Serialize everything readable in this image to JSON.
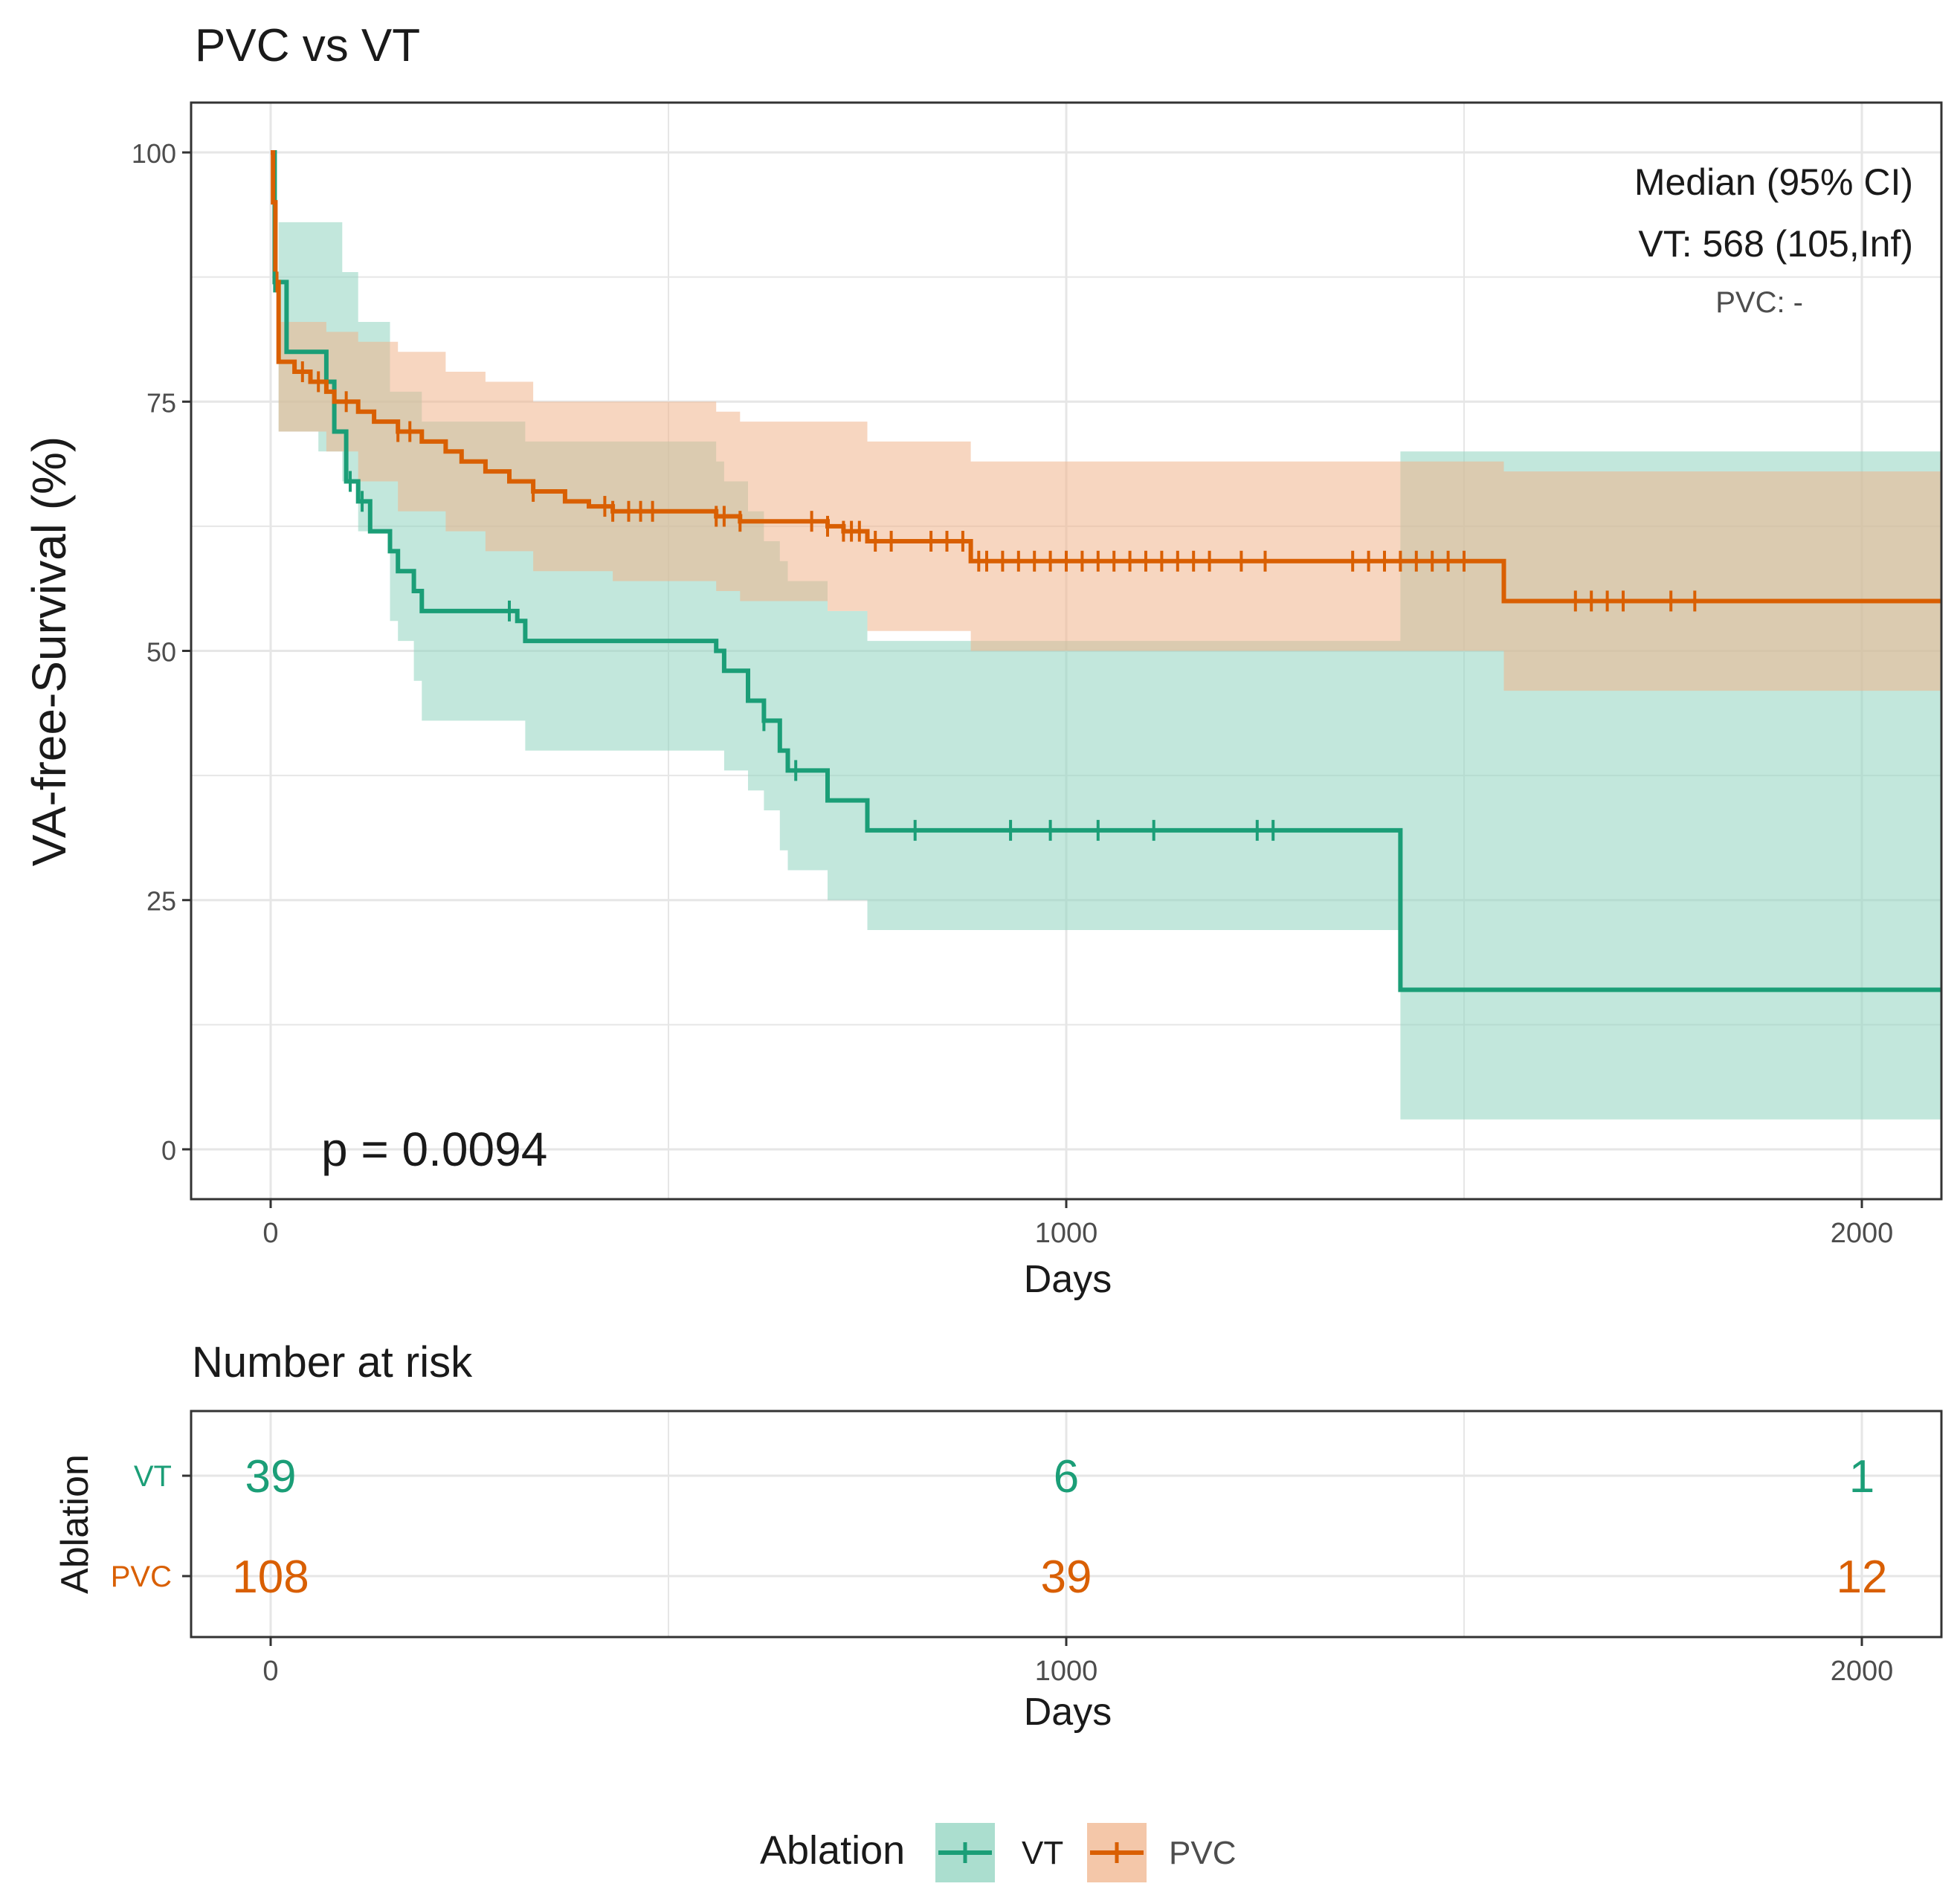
{
  "colors": {
    "vt": "#1b9e77",
    "pvc": "#d95f02",
    "vt_band": "#8fd3bf",
    "pvc_band": "#f0b48c",
    "grid": "#e6e6e6",
    "text": "#1a1a1a",
    "tick": "#4d4d4d"
  },
  "chart_data": [
    {
      "type": "line",
      "subtype": "kaplan-meier",
      "title": "PVC vs VT",
      "xlabel": "Days",
      "ylabel": "VA-free-Survival (%)",
      "xlim": [
        -100,
        2100
      ],
      "ylim": [
        -5,
        105
      ],
      "x_ticks": [
        0,
        1000,
        2000
      ],
      "x_tick_labels": [
        "0",
        "1000",
        "2000"
      ],
      "y_ticks": [
        0,
        25,
        50,
        75,
        100
      ],
      "y_tick_labels": [
        "0",
        "25",
        "50",
        "75",
        "100"
      ],
      "grid": true,
      "annotations": {
        "median_header": "Median (95% CI)",
        "median_vt": "VT: 568 (105,Inf)",
        "median_pvc": "PVC: -",
        "p_value": "p = 0.0094"
      },
      "series": [
        {
          "name": "VT",
          "step": {
            "x": [
              0,
              5,
              20,
              70,
              80,
              95,
              110,
              125,
              150,
              160,
              180,
              190,
              310,
              320,
              560,
              570,
              600,
              620,
              640,
              650,
              700,
              750,
              1420,
              2100
            ],
            "y": [
              100,
              87,
              80,
              77,
              72,
              67,
              65,
              62,
              60,
              58,
              56,
              54,
              53,
              51,
              50,
              48,
              45,
              43,
              40,
              38,
              35,
              32,
              16,
              16
            ]
          },
          "ci_band": {
            "x": [
              0,
              10,
              60,
              90,
              110,
              150,
              160,
              180,
              190,
              310,
              320,
              560,
              570,
              600,
              620,
              640,
              650,
              700,
              750,
              1420,
              1550,
              2100
            ],
            "upper": [
              100,
              93,
              93,
              88,
              83,
              76,
              76,
              76,
              73,
              73,
              71,
              69,
              67,
              64,
              61,
              59,
              57,
              54,
              51,
              70,
              70,
              70
            ],
            "lower": [
              100,
              72,
              70,
              67,
              62,
              53,
              51,
              47,
              43,
              43,
              40,
              40,
              38,
              36,
              34,
              30,
              28,
              25,
              22,
              3,
              3,
              3
            ]
          },
          "censor_x": [
            5,
            100,
            115,
            300,
            620,
            660,
            810,
            930,
            980,
            1040,
            1110,
            1240,
            1260
          ]
        },
        {
          "name": "PVC",
          "step": {
            "x": [
              0,
              3,
              6,
              10,
              30,
              50,
              70,
              80,
              110,
              130,
              160,
              190,
              220,
              240,
              270,
              300,
              330,
              370,
              400,
              430,
              470,
              500,
              560,
              590,
              680,
              700,
              720,
              750,
              880,
              1550,
              2100
            ],
            "y": [
              100,
              95,
              87,
              79,
              78,
              77,
              76,
              75,
              74,
              73,
              72,
              71,
              70,
              69,
              68,
              67,
              66,
              65,
              64.5,
              64,
              64,
              64,
              63.5,
              63,
              63,
              62.5,
              62,
              61,
              59,
              55,
              55
            ]
          },
          "ci_band": {
            "x": [
              0,
              10,
              70,
              110,
              160,
              220,
              270,
              330,
              430,
              560,
              590,
              700,
              750,
              880,
              1420,
              1550,
              2100
            ],
            "upper": [
              100,
              83,
              82,
              81,
              80,
              78,
              77,
              75,
              75,
              74,
              73,
              73,
              71,
              69,
              69,
              68,
              68
            ],
            "lower": [
              100,
              72,
              70,
              67,
              64,
              62,
              60,
              58,
              57,
              56,
              55,
              54,
              52,
              50,
              50,
              46,
              46
            ]
          },
          "censor_x": [
            8,
            40,
            60,
            95,
            160,
            175,
            330,
            420,
            430,
            450,
            465,
            480,
            560,
            570,
            590,
            680,
            700,
            720,
            730,
            740,
            760,
            780,
            830,
            850,
            870,
            890,
            900,
            920,
            940,
            960,
            980,
            1000,
            1020,
            1040,
            1060,
            1080,
            1100,
            1120,
            1140,
            1160,
            1180,
            1220,
            1250,
            1360,
            1380,
            1400,
            1420,
            1440,
            1460,
            1480,
            1500,
            1640,
            1660,
            1680,
            1700,
            1760,
            1790
          ]
        }
      ]
    },
    {
      "type": "table",
      "title": "Number at risk",
      "ylabel": "Ablation",
      "xlabel": "Days",
      "x_ticks": [
        0,
        1000,
        2000
      ],
      "x_tick_labels": [
        "0",
        "1000",
        "2000"
      ],
      "rows": [
        {
          "name": "VT",
          "values": [
            "39",
            "6",
            "1"
          ]
        },
        {
          "name": "PVC",
          "values": [
            "108",
            "39",
            "12"
          ]
        }
      ]
    }
  ],
  "legend": {
    "title": "Ablation",
    "items": [
      {
        "name": "VT"
      },
      {
        "name": "PVC"
      }
    ]
  }
}
